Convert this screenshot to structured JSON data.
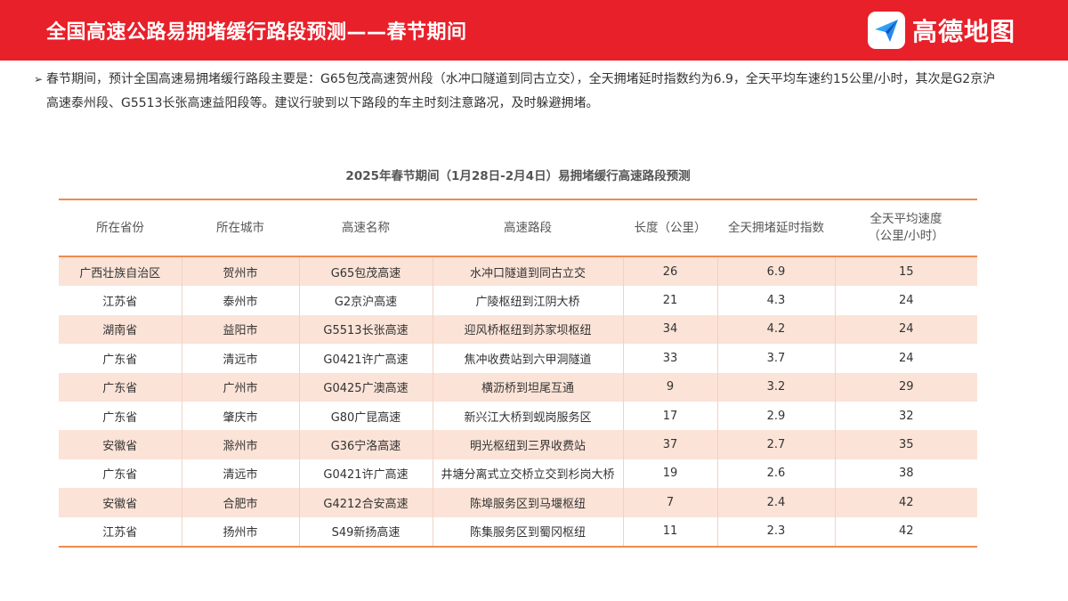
{
  "header": {
    "title": "全国高速公路易拥堵缓行路段预测——春节期间",
    "logo_text": "高德地图",
    "logo_icon": "paper-plane-icon",
    "accent": "#e8202a"
  },
  "intro": {
    "bullet_icon": "triangle-right-icon",
    "text": "春节期间，预计全国高速易拥堵缓行路段主要是：G65包茂高速贺州段（水冲口隧道到同古立交），全天拥堵延时指数约为6.9，全天平均车速约15公里/小时，其次是G2京沪高速泰州段、G5513长张高速益阳段等。建议行驶到以下路段的车主时刻注意路况，及时躲避拥堵。"
  },
  "table": {
    "title": "2025年春节期间（1月28日-2月4日）易拥堵缓行高速路段预测",
    "headers": [
      "所在省份",
      "所在城市",
      "高速名称",
      "高速路段",
      "长度（公里）",
      "全天拥堵延时指数",
      "全天平均速度",
      "（公里/小时）"
    ],
    "rows": [
      [
        "广西壮族自治区",
        "贺州市",
        "G65包茂高速",
        "水冲口隧道到同古立交",
        "26",
        "6.9",
        "15"
      ],
      [
        "江苏省",
        "泰州市",
        "G2京沪高速",
        "广陵枢纽到江阴大桥",
        "21",
        "4.3",
        "24"
      ],
      [
        "湖南省",
        "益阳市",
        "G5513长张高速",
        "迎风桥枢纽到苏家坝枢纽",
        "34",
        "4.2",
        "24"
      ],
      [
        "广东省",
        "清远市",
        "G0421许广高速",
        "焦冲收费站到六甲洞隧道",
        "33",
        "3.7",
        "24"
      ],
      [
        "广东省",
        "广州市",
        "G0425广澳高速",
        "横沥桥到坦尾互通",
        "9",
        "3.2",
        "29"
      ],
      [
        "广东省",
        "肇庆市",
        "G80广昆高速",
        "新兴江大桥到蚬岗服务区",
        "17",
        "2.9",
        "32"
      ],
      [
        "安徽省",
        "滁州市",
        "G36宁洛高速",
        "明光枢纽到三界收费站",
        "37",
        "2.7",
        "35"
      ],
      [
        "广东省",
        "清远市",
        "G0421许广高速",
        "井塘分离式立交桥立交到杉岗大桥",
        "19",
        "2.6",
        "38"
      ],
      [
        "安徽省",
        "合肥市",
        "G4212合安高速",
        "陈埠服务区到马堰枢纽",
        "7",
        "2.4",
        "42"
      ],
      [
        "江苏省",
        "扬州市",
        "S49新扬高速",
        "陈集服务区到蜀冈枢纽",
        "11",
        "2.3",
        "42"
      ]
    ]
  }
}
